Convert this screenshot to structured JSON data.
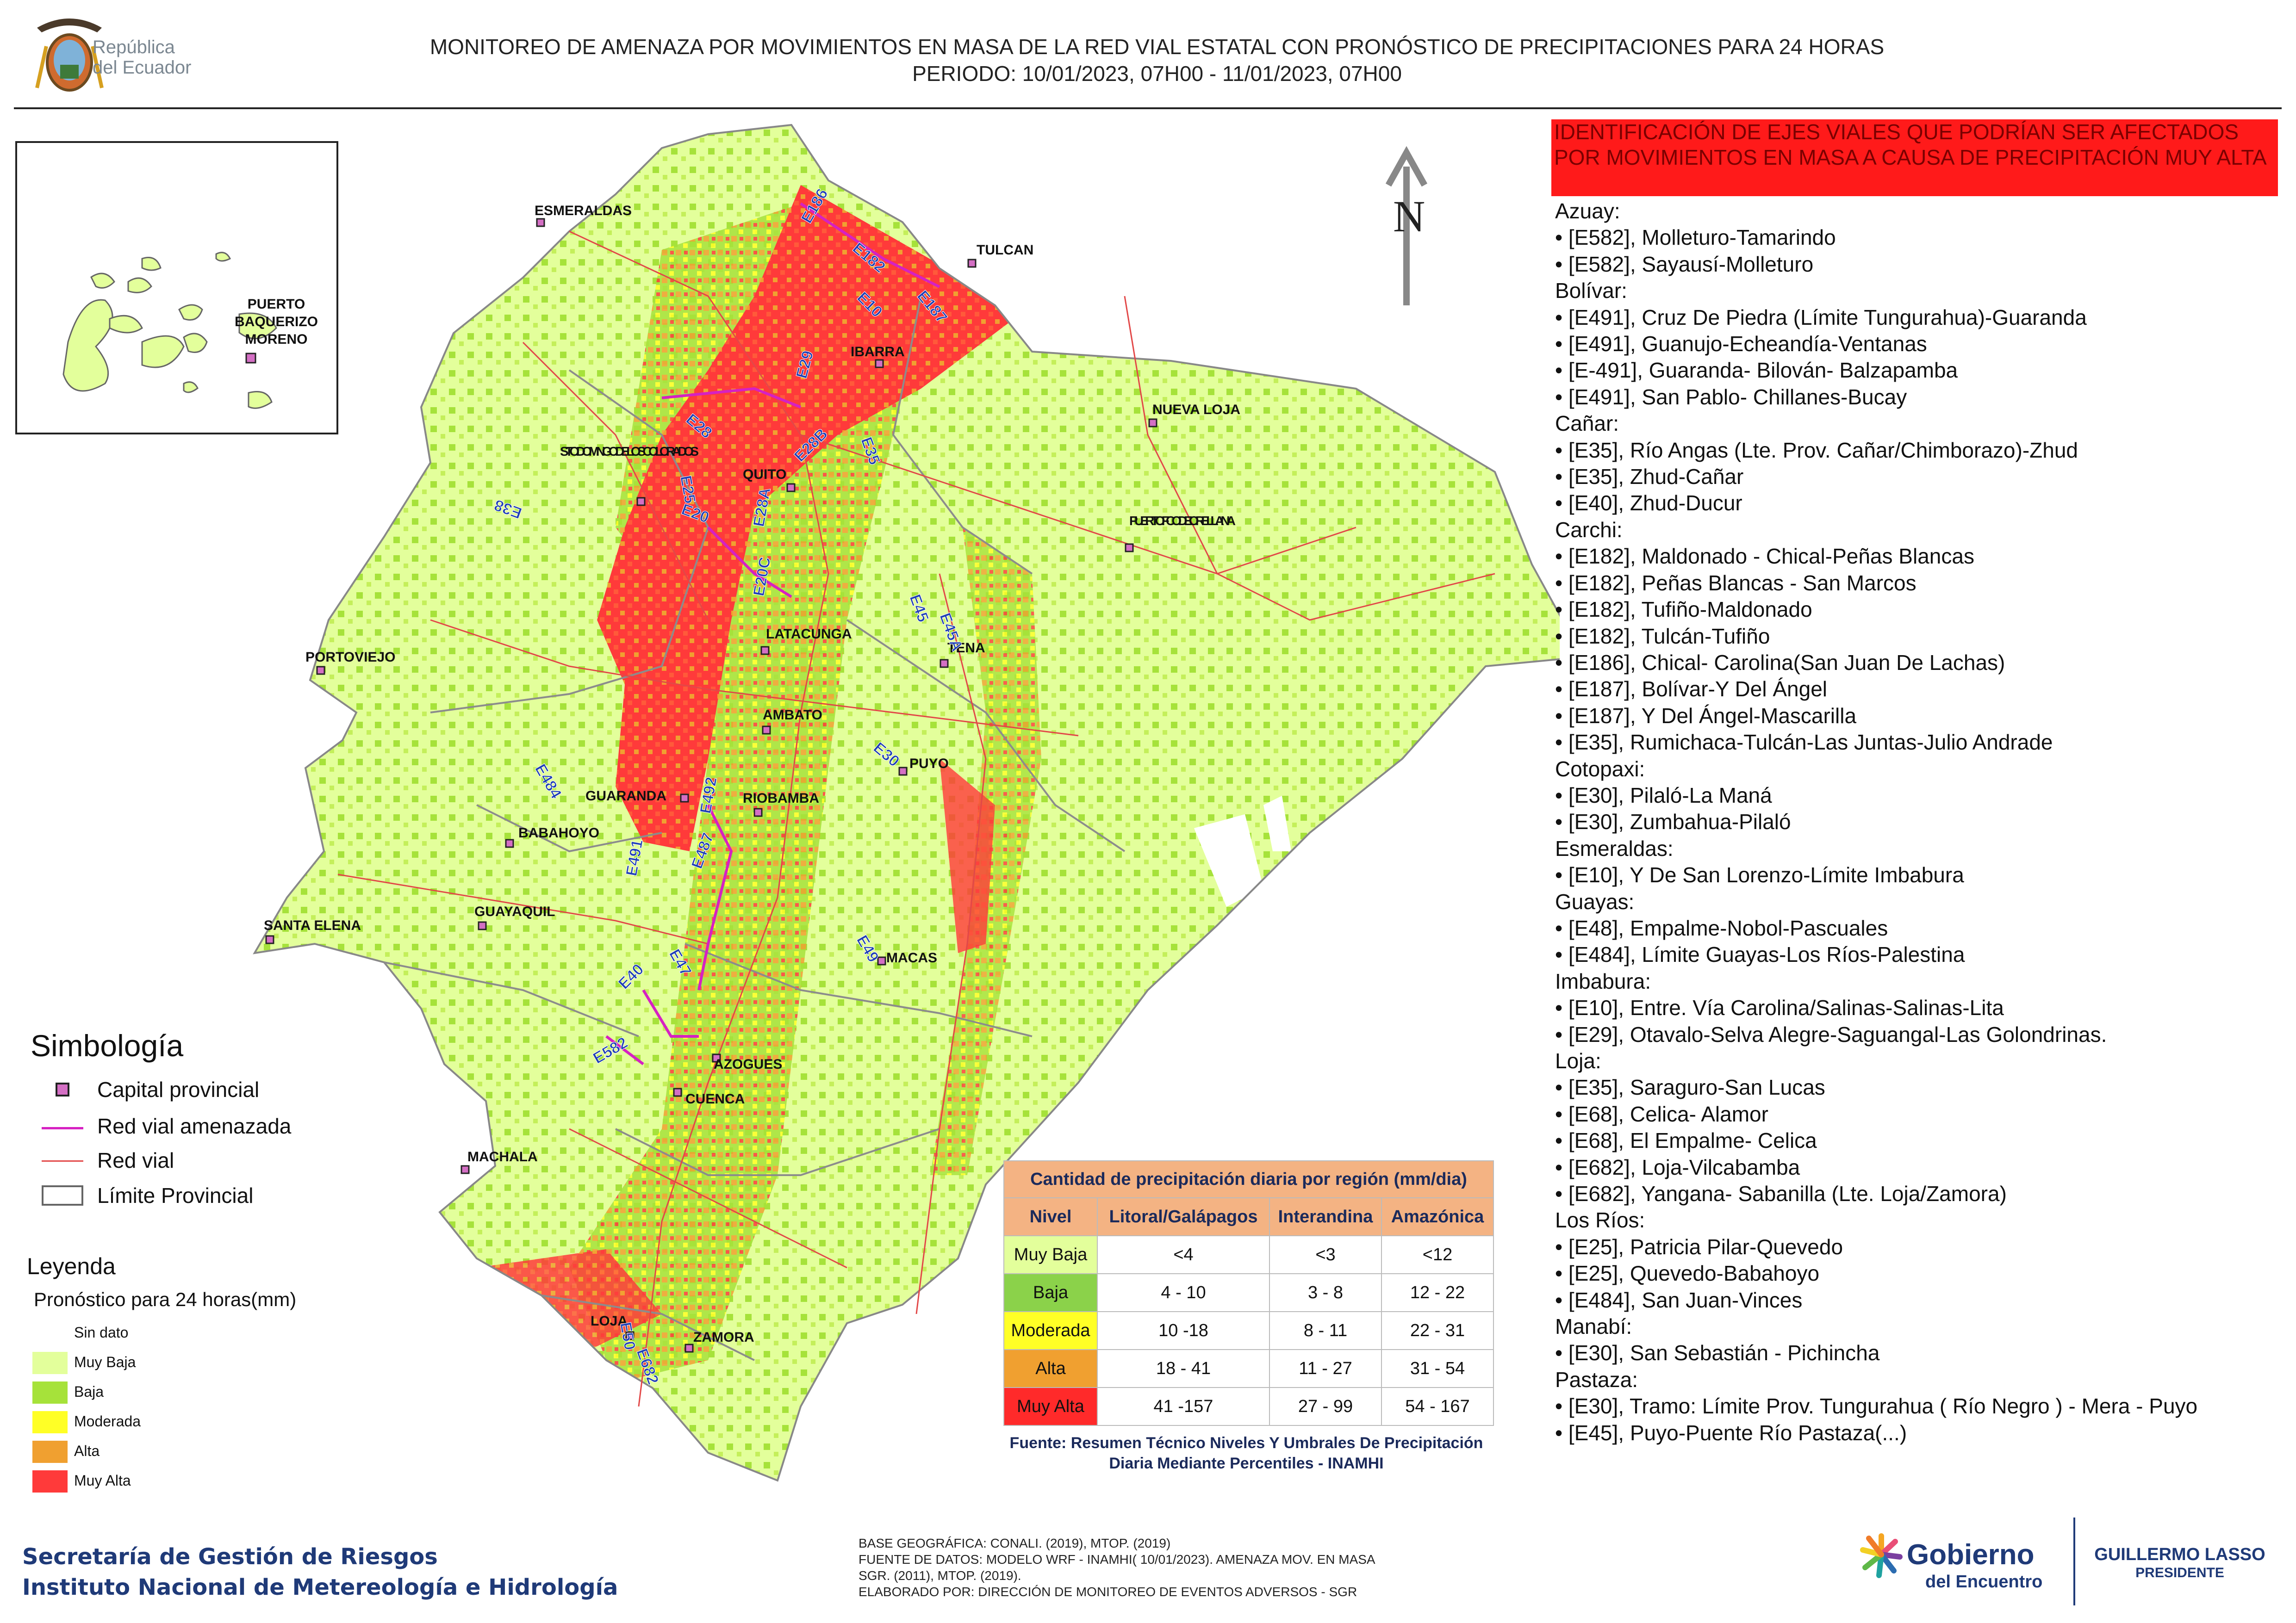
{
  "header": {
    "logo_text_1": "República",
    "logo_text_2": "del Ecuador",
    "title_1": "MONITOREO DE AMENAZA POR MOVIMIENTOS EN MASA DE LA RED VIAL  ESTATAL  CON PRONÓSTICO  DE  PRECIPITACIONES PARA 24 HORAS",
    "title_2": "PERIODO: 10/01/2023, 07H00 - 11/01/2023, 07H00"
  },
  "north_label": "N",
  "inset": {
    "city": "PUERTO BAQUERIZO MORENO"
  },
  "cities": [
    "ESMERALDAS",
    "TULCAN",
    "IBARRA",
    "NUEVA LOJA",
    "STO. DOMINGO DE LOS COLORADOS",
    "QUITO",
    "PUERTO FCO DE ORELLANA",
    "LATACUNGA",
    "TENA",
    "PORTOVIEJO",
    "AMBATO",
    "PUYO",
    "GUARANDA",
    "RIOBAMBA",
    "BABAHOYO",
    "SANTA ELENA",
    "GUAYAQUIL",
    "MACAS",
    "AZOGUES",
    "CUENCA",
    "MACHALA",
    "LOJA",
    "ZAMORA"
  ],
  "road_codes": [
    "E10",
    "E182",
    "E187",
    "E186",
    "E29",
    "E35",
    "E28",
    "E28B",
    "E25",
    "E20",
    "E38",
    "E28A",
    "E20C",
    "E45",
    "E45A",
    "E30",
    "E492",
    "E484",
    "E487",
    "E491",
    "E47",
    "E49",
    "E40",
    "E582",
    "E682",
    "E50"
  ],
  "alert_title": "IDENTIFICACIÓN DE EJES VIALES QUE PODRÍAN SER AFECTADOS POR MOVIMIENTOS EN MASA A CAUSA DE PRECIPITACIÓN MUY ALTA",
  "provinces": [
    {
      "name": "Azuay:",
      "roads": [
        "• [E582], Molleturo-Tamarindo",
        "• [E582], Sayausí-Molleturo"
      ]
    },
    {
      "name": "Bolívar:",
      "roads": [
        "• [E491], Cruz De Piedra (Límite Tungurahua)-Guaranda",
        "• [E491], Guanujo-Echeandía-Ventanas",
        "• [E-491], Guaranda- Bilován- Balzapamba",
        "• [E491], San Pablo- Chillanes-Bucay"
      ]
    },
    {
      "name": "Cañar:",
      "roads": [
        "• [E35], Río Angas (Lte. Prov. Cañar/Chimborazo)-Zhud",
        "• [E35], Zhud-Cañar",
        "• [E40], Zhud-Ducur"
      ]
    },
    {
      "name": "Carchi:",
      "roads": [
        "• [E182], Maldonado - Chical-Peñas Blancas",
        "• [E182], Peñas Blancas - San Marcos",
        "• [E182], Tufiño-Maldonado",
        "• [E182], Tulcán-Tufiño",
        "• [E186], Chical- Carolina(San Juan De Lachas)",
        "• [E187], Bolívar-Y Del Ángel",
        "• [E187], Y Del Ángel-Mascarilla",
        "• [E35], Rumichaca-Tulcán-Las Juntas-Julio Andrade"
      ]
    },
    {
      "name": "Cotopaxi:",
      "roads": [
        "• [E30], Pilaló-La Maná",
        "• [E30], Zumbahua-Pilaló"
      ]
    },
    {
      "name": "Esmeraldas:",
      "roads": [
        "• [E10], Y De San Lorenzo-Límite Imbabura"
      ]
    },
    {
      "name": "Guayas:",
      "roads": [
        "• [E48], Empalme-Nobol-Pascuales",
        "• [E484], Límite Guayas-Los Ríos-Palestina"
      ]
    },
    {
      "name": "Imbabura:",
      "roads": [
        "• [E10], Entre. Vía Carolina/Salinas-Salinas-Lita",
        "• [E29], Otavalo-Selva Alegre-Saguangal-Las Golondrinas."
      ]
    },
    {
      "name": "Loja:",
      "roads": [
        "• [E35], Saraguro-San Lucas",
        "• [E68], Celica- Alamor",
        "• [E68], El Empalme- Celica",
        "• [E682], Loja-Vilcabamba",
        "• [E682], Yangana- Sabanilla (Lte. Loja/Zamora)"
      ]
    },
    {
      "name": "Los Ríos:",
      "roads": [
        "• [E25], Patricia Pilar-Quevedo",
        "• [E25], Quevedo-Babahoyo",
        "• [E484], San Juan-Vinces"
      ]
    },
    {
      "name": "Manabí:",
      "roads": [
        "• [E30], San Sebastián - Pichincha"
      ]
    },
    {
      "name": "Pastaza:",
      "roads": [
        "• [E30], Tramo: Límite Prov. Tungurahua ( Río Negro ) - Mera - Puyo",
        "• [E45], Puyo-Puente Río Pastaza(...)"
      ]
    }
  ],
  "simbologia": {
    "title": "Simbología",
    "items": [
      "Capital provincial",
      "Red vial amenazada",
      "Red vial",
      "Límite Provincial"
    ]
  },
  "leyenda": {
    "title": "Leyenda",
    "subtitle": "Pronóstico para 24 horas(mm)",
    "items": [
      {
        "label": "Sin dato",
        "color": "#ffffff"
      },
      {
        "label": " Muy Baja",
        "color": "#e3ff9b"
      },
      {
        "label": "Baja",
        "color": "#a6e23a"
      },
      {
        "label": "Moderada",
        "color": "#ffff26"
      },
      {
        "label": "Alta",
        "color": "#f0a030"
      },
      {
        "label": "Muy Alta",
        "color": "#ff3a3a"
      }
    ]
  },
  "precip_table": {
    "caption": "Cantidad de precipitación diaria por región (mm/dia)",
    "headers": [
      "Nivel",
      "Litoral/Galápagos",
      "Interandina",
      "Amazónica"
    ],
    "rows": [
      {
        "level": "Muy Baja",
        "color": "#e3ff9b",
        "values": [
          "<4",
          "<3",
          "<12"
        ]
      },
      {
        "level": "Baja",
        "color": "#8bd24a",
        "values": [
          "4 - 10",
          "3 - 8",
          "12 - 22"
        ]
      },
      {
        "level": "Moderada",
        "color": "#ffff26",
        "values": [
          "10 -18",
          "8 - 11",
          "22 - 31"
        ]
      },
      {
        "level": "Alta",
        "color": "#f0a030",
        "values": [
          "18 - 41",
          "11 - 27",
          "31 - 54"
        ]
      },
      {
        "level": "Muy Alta",
        "color": "#ff2a2a",
        "values": [
          "41 -157",
          "27 - 99",
          "54 - 167"
        ]
      }
    ],
    "source": "Fuente: Resumen Técnico Niveles Y Umbrales De Precipitación Diaria Mediante Percentiles - INAMHI"
  },
  "footer": {
    "org_1": "Secretaría de Gestión de Riesgos",
    "org_2": "Instituto Nacional de Metereología e Hidrología",
    "credits": [
      "BASE GEOGRÁFICA: CONALI. (2019), MTOP. (2019)",
      "FUENTE DE DATOS: MODELO WRF - INAMHI( 10/01/2023).  AMENAZA MOV. EN MASA",
      "SGR. (2011), MTOP. (2019).",
      "ELABORADO POR: DIRECCIÓN DE MONITOREO DE EVENTOS ADVERSOS - SGR"
    ],
    "gob_1": "Gobierno",
    "gob_2": "del Encuentro",
    "president_name": "GUILLERMO LASSO",
    "president_title": "PRESIDENTE"
  }
}
